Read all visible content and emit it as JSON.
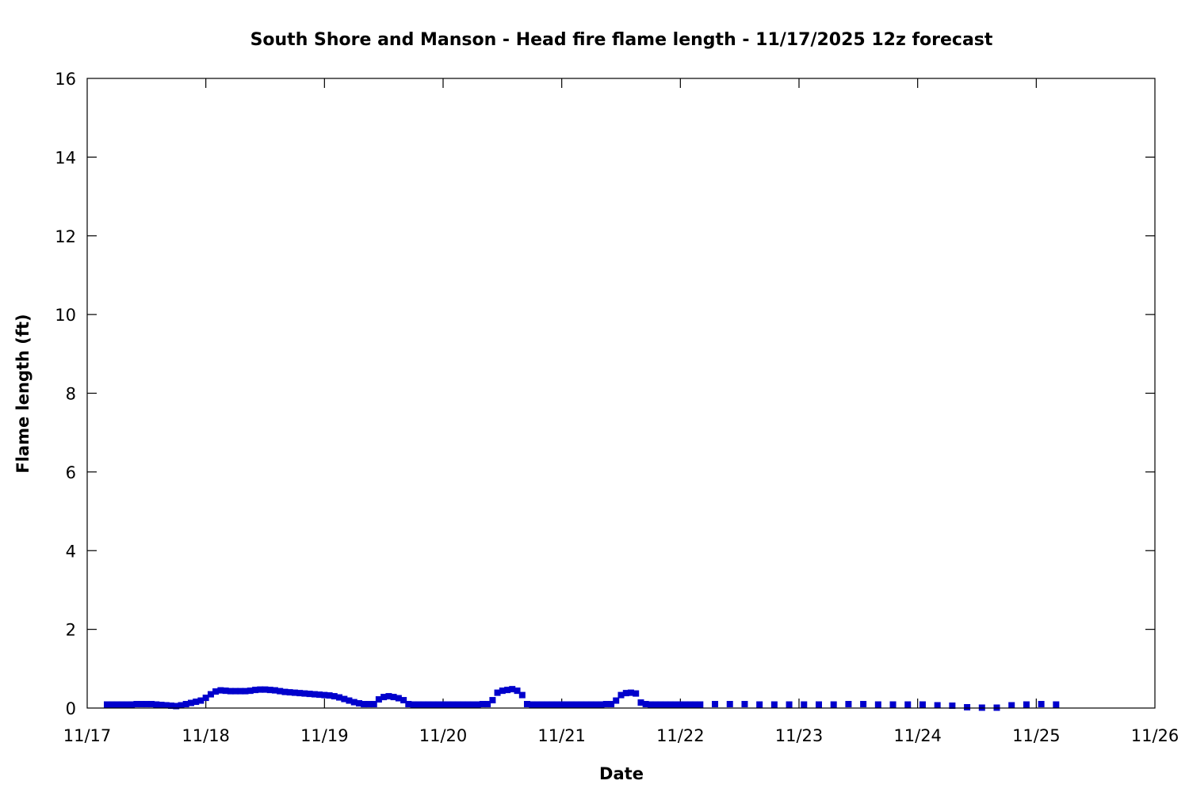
{
  "chart_data": {
    "type": "scatter",
    "title": "South Shore and Manson - Head fire flame length - 11/17/2025 12z forecast",
    "xlabel": "Date",
    "ylabel": "Flame length (ft)",
    "xlim": [
      "11/17",
      "11/26"
    ],
    "ylim": [
      0,
      16
    ],
    "x_ticks": [
      "11/17",
      "11/18",
      "11/19",
      "11/20",
      "11/21",
      "11/22",
      "11/23",
      "11/24",
      "11/25",
      "11/26"
    ],
    "y_ticks": [
      "0",
      "2",
      "4",
      "6",
      "8",
      "10",
      "12",
      "14",
      "16"
    ],
    "grid": false,
    "marker_color": "#0000cc",
    "series": [
      {
        "x_unit": "days from 11/17 00z",
        "points": [
          [
            0.167,
            0.09
          ],
          [
            0.208,
            0.09
          ],
          [
            0.25,
            0.09
          ],
          [
            0.292,
            0.09
          ],
          [
            0.333,
            0.09
          ],
          [
            0.375,
            0.09
          ],
          [
            0.417,
            0.1
          ],
          [
            0.458,
            0.1
          ],
          [
            0.5,
            0.1
          ],
          [
            0.542,
            0.1
          ],
          [
            0.583,
            0.09
          ],
          [
            0.625,
            0.08
          ],
          [
            0.667,
            0.07
          ],
          [
            0.708,
            0.06
          ],
          [
            0.75,
            0.05
          ],
          [
            0.792,
            0.07
          ],
          [
            0.833,
            0.1
          ],
          [
            0.875,
            0.13
          ],
          [
            0.917,
            0.16
          ],
          [
            0.958,
            0.19
          ],
          [
            1.0,
            0.26
          ],
          [
            1.042,
            0.35
          ],
          [
            1.083,
            0.42
          ],
          [
            1.125,
            0.45
          ],
          [
            1.167,
            0.44
          ],
          [
            1.208,
            0.43
          ],
          [
            1.25,
            0.43
          ],
          [
            1.292,
            0.43
          ],
          [
            1.333,
            0.43
          ],
          [
            1.375,
            0.44
          ],
          [
            1.417,
            0.46
          ],
          [
            1.458,
            0.47
          ],
          [
            1.5,
            0.47
          ],
          [
            1.542,
            0.46
          ],
          [
            1.583,
            0.45
          ],
          [
            1.625,
            0.43
          ],
          [
            1.667,
            0.41
          ],
          [
            1.708,
            0.4
          ],
          [
            1.75,
            0.39
          ],
          [
            1.792,
            0.38
          ],
          [
            1.833,
            0.37
          ],
          [
            1.875,
            0.36
          ],
          [
            1.917,
            0.35
          ],
          [
            1.958,
            0.34
          ],
          [
            2.0,
            0.33
          ],
          [
            2.042,
            0.32
          ],
          [
            2.083,
            0.3
          ],
          [
            2.125,
            0.27
          ],
          [
            2.167,
            0.23
          ],
          [
            2.208,
            0.19
          ],
          [
            2.25,
            0.15
          ],
          [
            2.292,
            0.12
          ],
          [
            2.333,
            0.1
          ],
          [
            2.375,
            0.1
          ],
          [
            2.417,
            0.1
          ],
          [
            2.458,
            0.22
          ],
          [
            2.5,
            0.28
          ],
          [
            2.542,
            0.3
          ],
          [
            2.583,
            0.28
          ],
          [
            2.625,
            0.25
          ],
          [
            2.667,
            0.2
          ],
          [
            2.708,
            0.1
          ],
          [
            2.75,
            0.09
          ],
          [
            2.792,
            0.09
          ],
          [
            2.833,
            0.09
          ],
          [
            2.875,
            0.09
          ],
          [
            2.917,
            0.09
          ],
          [
            2.958,
            0.09
          ],
          [
            3.0,
            0.09
          ],
          [
            3.042,
            0.09
          ],
          [
            3.083,
            0.09
          ],
          [
            3.125,
            0.09
          ],
          [
            3.167,
            0.09
          ],
          [
            3.208,
            0.09
          ],
          [
            3.25,
            0.09
          ],
          [
            3.292,
            0.09
          ],
          [
            3.333,
            0.1
          ],
          [
            3.375,
            0.1
          ],
          [
            3.417,
            0.2
          ],
          [
            3.458,
            0.39
          ],
          [
            3.5,
            0.44
          ],
          [
            3.542,
            0.46
          ],
          [
            3.583,
            0.48
          ],
          [
            3.625,
            0.44
          ],
          [
            3.667,
            0.33
          ],
          [
            3.708,
            0.1
          ],
          [
            3.75,
            0.09
          ],
          [
            3.792,
            0.09
          ],
          [
            3.833,
            0.09
          ],
          [
            3.875,
            0.09
          ],
          [
            3.917,
            0.09
          ],
          [
            3.958,
            0.09
          ],
          [
            4.0,
            0.09
          ],
          [
            4.042,
            0.09
          ],
          [
            4.083,
            0.09
          ],
          [
            4.125,
            0.09
          ],
          [
            4.167,
            0.09
          ],
          [
            4.208,
            0.09
          ],
          [
            4.25,
            0.09
          ],
          [
            4.292,
            0.09
          ],
          [
            4.333,
            0.09
          ],
          [
            4.375,
            0.1
          ],
          [
            4.417,
            0.1
          ],
          [
            4.458,
            0.19
          ],
          [
            4.5,
            0.33
          ],
          [
            4.542,
            0.38
          ],
          [
            4.583,
            0.39
          ],
          [
            4.625,
            0.37
          ],
          [
            4.667,
            0.14
          ],
          [
            4.708,
            0.1
          ],
          [
            4.75,
            0.09
          ],
          [
            4.792,
            0.09
          ],
          [
            4.833,
            0.09
          ],
          [
            4.875,
            0.09
          ],
          [
            4.917,
            0.09
          ],
          [
            4.958,
            0.09
          ],
          [
            5.0,
            0.09
          ],
          [
            5.042,
            0.09
          ],
          [
            5.083,
            0.09
          ],
          [
            5.125,
            0.09
          ],
          [
            5.167,
            0.09
          ],
          [
            5.292,
            0.1
          ],
          [
            5.417,
            0.1
          ],
          [
            5.542,
            0.1
          ],
          [
            5.667,
            0.09
          ],
          [
            5.792,
            0.09
          ],
          [
            5.917,
            0.09
          ],
          [
            6.042,
            0.09
          ],
          [
            6.167,
            0.09
          ],
          [
            6.292,
            0.09
          ],
          [
            6.417,
            0.1
          ],
          [
            6.542,
            0.1
          ],
          [
            6.667,
            0.09
          ],
          [
            6.792,
            0.09
          ],
          [
            6.917,
            0.09
          ],
          [
            7.042,
            0.09
          ],
          [
            7.167,
            0.07
          ],
          [
            7.292,
            0.06
          ],
          [
            7.417,
            0.02
          ],
          [
            7.542,
            0.01
          ],
          [
            7.667,
            0.01
          ],
          [
            7.792,
            0.07
          ],
          [
            7.917,
            0.09
          ],
          [
            8.042,
            0.1
          ],
          [
            8.167,
            0.09
          ]
        ]
      }
    ]
  }
}
